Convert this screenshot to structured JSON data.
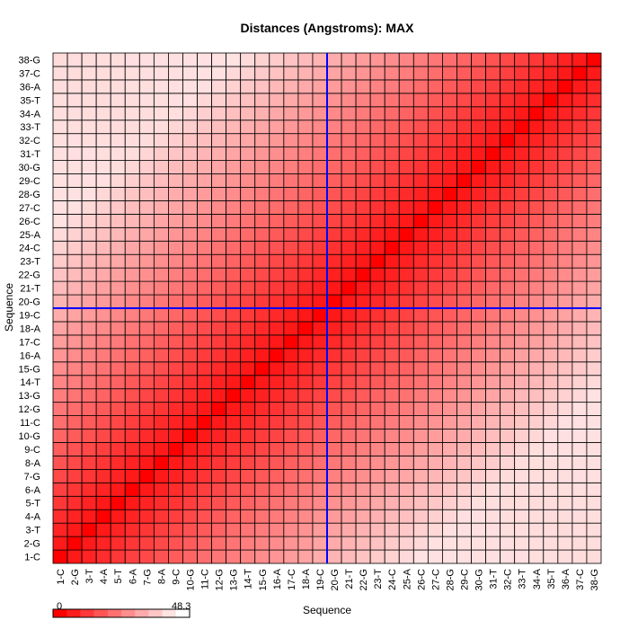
{
  "chart_data": {
    "type": "heatmap",
    "title": "Distances (Angstroms):  MAX",
    "xlabel": "Sequence",
    "ylabel": "Sequence",
    "labels": [
      "1-C",
      "2-G",
      "3-T",
      "4-A",
      "5-T",
      "6-A",
      "7-G",
      "8-A",
      "9-C",
      "10-G",
      "11-C",
      "12-G",
      "13-G",
      "14-T",
      "15-G",
      "16-A",
      "17-C",
      "18-A",
      "19-C",
      "20-G",
      "21-T",
      "22-G",
      "23-T",
      "24-C",
      "25-A",
      "26-C",
      "27-C",
      "28-G",
      "29-C",
      "30-G",
      "31-T",
      "32-C",
      "33-T",
      "34-A",
      "35-T",
      "36-A",
      "37-C",
      "38-G"
    ],
    "value_min": 0,
    "value_max": 48.3,
    "colors": {
      "low": "#ff0000",
      "high": "#ffffff",
      "crosshair": "#0000ff"
    },
    "crosshair": {
      "x": "19-C",
      "y": "19-C"
    },
    "legend": {
      "min_label": "0",
      "max_label": "48.3",
      "steps": 10
    },
    "note_values": "symmetric matrix of pairwise residue distances in Angstroms; values estimated from cell color"
  }
}
